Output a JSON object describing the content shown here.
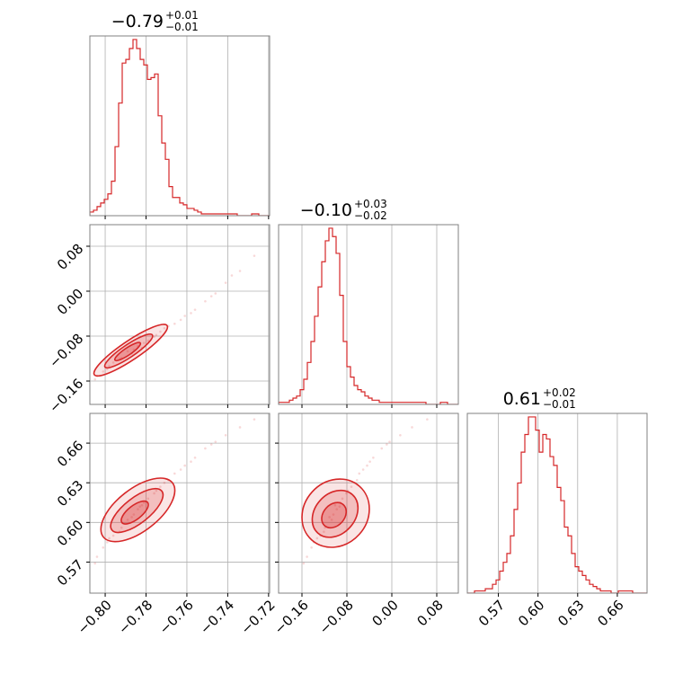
{
  "chart_data": [
    {
      "type": "histogram",
      "panel": "diag-1",
      "title": {
        "value": "−0.79",
        "plus": "+0.01",
        "minus": "−0.01"
      },
      "xlim": [
        -0.8075,
        -0.7195
      ],
      "x_ticks": [
        -0.8,
        -0.78,
        -0.76,
        -0.74,
        -0.72
      ],
      "bins": {
        "start": -0.8075,
        "width": 0.00176,
        "counts": [
          2,
          3,
          5,
          7,
          9,
          12,
          19,
          38,
          62,
          84,
          86,
          92,
          97,
          92,
          86,
          83,
          75,
          76,
          78,
          55,
          40,
          31,
          16,
          10,
          10,
          7,
          6,
          4,
          4,
          3,
          2,
          1,
          1,
          1,
          1,
          1,
          1,
          1,
          1,
          1,
          1,
          0,
          0,
          0,
          0,
          1,
          1,
          0,
          0,
          0
        ]
      }
    },
    {
      "type": "histogram",
      "panel": "diag-2",
      "title": {
        "value": "−0.10",
        "plus": "+0.03",
        "minus": "−0.02"
      },
      "xlim": [
        -0.2016,
        0.1184
      ],
      "x_ticks": [
        -0.16,
        -0.08,
        0.0,
        0.08
      ],
      "bins": {
        "start": -0.2016,
        "width": 0.0064,
        "counts": [
          1,
          1,
          1,
          2,
          3,
          4,
          7,
          12,
          20,
          30,
          42,
          56,
          68,
          78,
          84,
          80,
          72,
          52,
          30,
          18,
          13,
          9,
          7,
          6,
          4,
          3,
          2,
          2,
          1,
          1,
          1,
          1,
          1,
          1,
          1,
          1,
          1,
          1,
          1,
          1,
          1,
          0,
          0,
          0,
          0,
          1,
          1,
          0,
          0,
          0
        ]
      }
    },
    {
      "type": "histogram",
      "panel": "diag-3",
      "title": {
        "value": "0.61",
        "plus": "+0.02",
        "minus": "−0.01"
      },
      "xlim": [
        0.5465,
        0.6825
      ],
      "x_ticks": [
        0.57,
        0.6,
        0.63,
        0.66
      ],
      "bins": {
        "start": 0.5465,
        "width": 0.00272,
        "counts": [
          0,
          0,
          1,
          1,
          1,
          2,
          2,
          4,
          6,
          10,
          14,
          18,
          26,
          38,
          50,
          64,
          72,
          80,
          80,
          74,
          64,
          72,
          70,
          62,
          58,
          48,
          42,
          30,
          26,
          18,
          12,
          10,
          8,
          6,
          4,
          3,
          2,
          1,
          1,
          1,
          0,
          0,
          1,
          1,
          1,
          1,
          0,
          0,
          0,
          0
        ]
      }
    },
    {
      "type": "scatter",
      "panel": "x1-vs-x2",
      "xlim": [
        -0.8075,
        -0.7195
      ],
      "ylim": [
        -0.2016,
        0.1184
      ],
      "x_ticks": [
        -0.8,
        -0.78,
        -0.76,
        -0.74,
        -0.72
      ],
      "y_ticks": [
        -0.16,
        -0.08,
        0.0,
        0.08
      ],
      "points": [
        [
          -0.789,
          -0.107
        ],
        [
          -0.781,
          -0.092
        ],
        [
          -0.792,
          -0.119
        ],
        [
          -0.798,
          -0.133
        ],
        [
          -0.775,
          -0.078
        ],
        [
          -0.784,
          -0.098
        ],
        [
          -0.786,
          -0.104
        ],
        [
          -0.793,
          -0.121
        ],
        [
          -0.779,
          -0.088
        ],
        [
          -0.771,
          -0.066
        ],
        [
          -0.766,
          -0.058
        ],
        [
          -0.761,
          -0.044
        ],
        [
          -0.756,
          -0.033
        ],
        [
          -0.751,
          -0.018
        ],
        [
          -0.746,
          -0.004
        ],
        [
          -0.741,
          0.015
        ],
        [
          -0.734,
          0.036
        ],
        [
          -0.727,
          0.063
        ],
        [
          -0.801,
          -0.143
        ],
        [
          -0.804,
          -0.151
        ],
        [
          -0.796,
          -0.127
        ],
        [
          -0.783,
          -0.093
        ],
        [
          -0.776,
          -0.081
        ],
        [
          -0.769,
          -0.062
        ],
        [
          -0.763,
          -0.051
        ],
        [
          -0.758,
          -0.039
        ],
        [
          -0.748,
          -0.009
        ],
        [
          -0.738,
          0.028
        ],
        [
          -0.805,
          -0.157
        ],
        [
          -0.799,
          -0.139
        ],
        [
          -0.787,
          -0.111
        ],
        [
          -0.782,
          -0.101
        ],
        [
          -0.773,
          -0.072
        ]
      ],
      "contours": [
        {
          "cx": -0.7875,
          "cy": -0.105,
          "rx": 0.0215,
          "ry": 0.0042,
          "deg": -34
        },
        {
          "cx": -0.7885,
          "cy": -0.1065,
          "rx": 0.014,
          "ry": 0.0028,
          "deg": -34
        },
        {
          "cx": -0.789,
          "cy": -0.1075,
          "rx": 0.0075,
          "ry": 0.0016,
          "deg": -34
        }
      ]
    },
    {
      "type": "scatter",
      "panel": "x1-vs-x3",
      "xlim": [
        -0.8075,
        -0.7195
      ],
      "ylim": [
        0.5465,
        0.6825
      ],
      "x_ticks": [
        -0.8,
        -0.78,
        -0.76,
        -0.74,
        -0.72
      ],
      "y_ticks": [
        0.57,
        0.6,
        0.63,
        0.66
      ],
      "points": [
        [
          -0.789,
          0.602
        ],
        [
          -0.781,
          0.615
        ],
        [
          -0.792,
          0.596
        ],
        [
          -0.798,
          0.588
        ],
        [
          -0.775,
          0.624
        ],
        [
          -0.784,
          0.61
        ],
        [
          -0.786,
          0.606
        ],
        [
          -0.793,
          0.593
        ],
        [
          -0.779,
          0.618
        ],
        [
          -0.771,
          0.63
        ],
        [
          -0.766,
          0.637
        ],
        [
          -0.761,
          0.643
        ],
        [
          -0.756,
          0.649
        ],
        [
          -0.751,
          0.656
        ],
        [
          -0.746,
          0.661
        ],
        [
          -0.741,
          0.666
        ],
        [
          -0.734,
          0.672
        ],
        [
          -0.727,
          0.678
        ],
        [
          -0.801,
          0.581
        ],
        [
          -0.804,
          0.574
        ],
        [
          -0.796,
          0.59
        ],
        [
          -0.783,
          0.612
        ],
        [
          -0.776,
          0.622
        ],
        [
          -0.769,
          0.632
        ],
        [
          -0.763,
          0.64
        ],
        [
          -0.758,
          0.646
        ],
        [
          -0.748,
          0.659
        ],
        [
          -0.805,
          0.569
        ],
        [
          -0.799,
          0.585
        ],
        [
          -0.787,
          0.604
        ],
        [
          -0.782,
          0.613
        ],
        [
          -0.773,
          0.627
        ]
      ],
      "contours": [
        {
          "cx": -0.784,
          "cy": 0.6095,
          "rx": 0.0215,
          "ry": 0.004,
          "deg": -38
        },
        {
          "cx": -0.7845,
          "cy": 0.609,
          "rx": 0.0155,
          "ry": 0.0024,
          "deg": -38
        },
        {
          "cx": -0.7855,
          "cy": 0.6075,
          "rx": 0.008,
          "ry": 0.0013,
          "deg": -38
        }
      ]
    },
    {
      "type": "scatter",
      "panel": "x2-vs-x3",
      "xlim": [
        -0.2016,
        0.1184
      ],
      "ylim": [
        0.5465,
        0.6825
      ],
      "x_ticks": [
        -0.16,
        -0.08,
        0.0,
        0.08
      ],
      "y_ticks": [
        0.57,
        0.6,
        0.63,
        0.66
      ],
      "points": [
        [
          -0.107,
          0.602
        ],
        [
          -0.092,
          0.615
        ],
        [
          -0.119,
          0.596
        ],
        [
          -0.133,
          0.588
        ],
        [
          -0.078,
          0.624
        ],
        [
          -0.098,
          0.61
        ],
        [
          -0.104,
          0.606
        ],
        [
          -0.121,
          0.593
        ],
        [
          -0.088,
          0.618
        ],
        [
          -0.066,
          0.63
        ],
        [
          -0.058,
          0.637
        ],
        [
          -0.044,
          0.643
        ],
        [
          -0.033,
          0.649
        ],
        [
          -0.018,
          0.656
        ],
        [
          -0.004,
          0.661
        ],
        [
          0.015,
          0.666
        ],
        [
          0.036,
          0.672
        ],
        [
          0.063,
          0.678
        ],
        [
          -0.143,
          0.581
        ],
        [
          -0.151,
          0.574
        ],
        [
          -0.127,
          0.59
        ],
        [
          -0.093,
          0.612
        ],
        [
          -0.081,
          0.622
        ],
        [
          -0.062,
          0.632
        ],
        [
          -0.051,
          0.64
        ],
        [
          -0.039,
          0.646
        ],
        [
          -0.009,
          0.659
        ],
        [
          -0.157,
          0.569
        ],
        [
          -0.139,
          0.585
        ],
        [
          -0.111,
          0.604
        ],
        [
          -0.101,
          0.613
        ],
        [
          -0.072,
          0.627
        ]
      ],
      "contours": [
        {
          "cx": -0.1,
          "cy": 0.607,
          "rx": 0.064,
          "ry": 0.006,
          "deg": -48
        },
        {
          "cx": -0.101,
          "cy": 0.6065,
          "rx": 0.046,
          "ry": 0.0038,
          "deg": -48
        },
        {
          "cx": -0.103,
          "cy": 0.6055,
          "rx": 0.025,
          "ry": 0.002,
          "deg": -48
        }
      ]
    }
  ],
  "colors": {
    "line": "#d62728",
    "grid": "#b0b0b0",
    "frame": "#808080",
    "text": "#000000"
  }
}
